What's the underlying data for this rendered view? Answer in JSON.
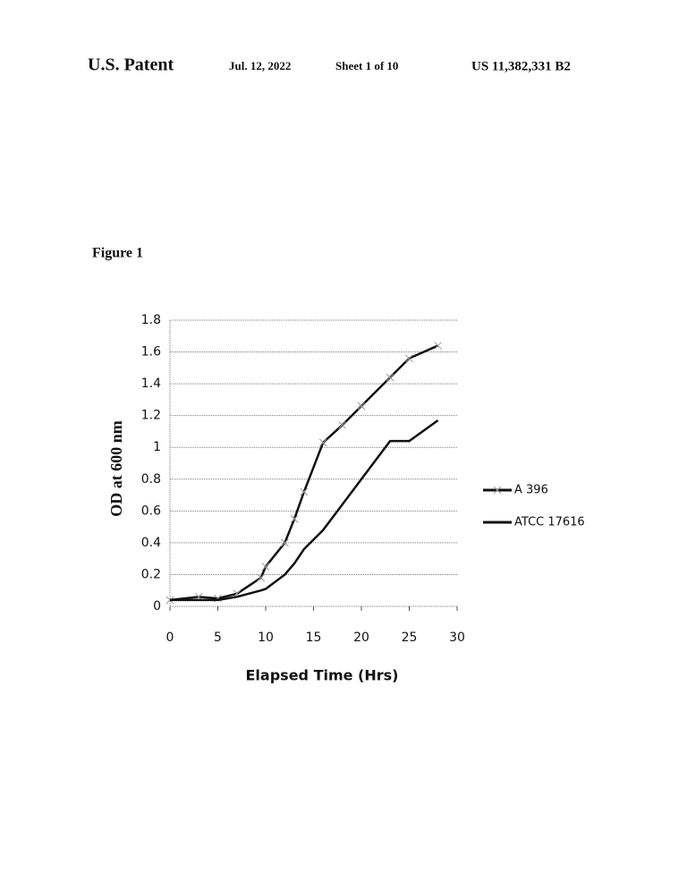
{
  "header": {
    "left": "U.S. Patent",
    "date": "Jul. 12, 2022",
    "sheet": "Sheet 1 of 10",
    "number": "US 11,382,331 B2"
  },
  "figure_label": "Figure 1",
  "chart_data": {
    "type": "line",
    "x_label": "Elapsed Time (Hrs)",
    "y_label": "OD at 600 nm",
    "x": [
      0,
      3,
      5,
      7,
      9.5,
      10,
      12,
      13,
      14,
      16,
      18,
      20,
      23,
      25,
      28
    ],
    "series": [
      {
        "name": "A 396",
        "color": "#111111",
        "marker": "x",
        "values": [
          0.04,
          0.06,
          0.05,
          0.08,
          0.18,
          0.25,
          0.4,
          0.55,
          0.72,
          1.03,
          1.14,
          1.26,
          1.44,
          1.56,
          1.64
        ]
      },
      {
        "name": "ATCC 17616",
        "color": "#111111",
        "values": [
          0.04,
          0.04,
          0.04,
          0.06,
          0.1,
          0.11,
          0.2,
          0.27,
          0.36,
          0.48,
          0.64,
          0.8,
          1.04,
          1.04,
          1.17
        ]
      }
    ],
    "xlim": [
      0,
      30
    ],
    "xticks": [
      0,
      5,
      10,
      15,
      20,
      25,
      30
    ],
    "ylim": [
      0,
      1.8
    ],
    "yticks": [
      0,
      0.2,
      0.4,
      0.6,
      0.8,
      1,
      1.2,
      1.4,
      1.6,
      1.8
    ],
    "grid": true,
    "legend": "right"
  }
}
